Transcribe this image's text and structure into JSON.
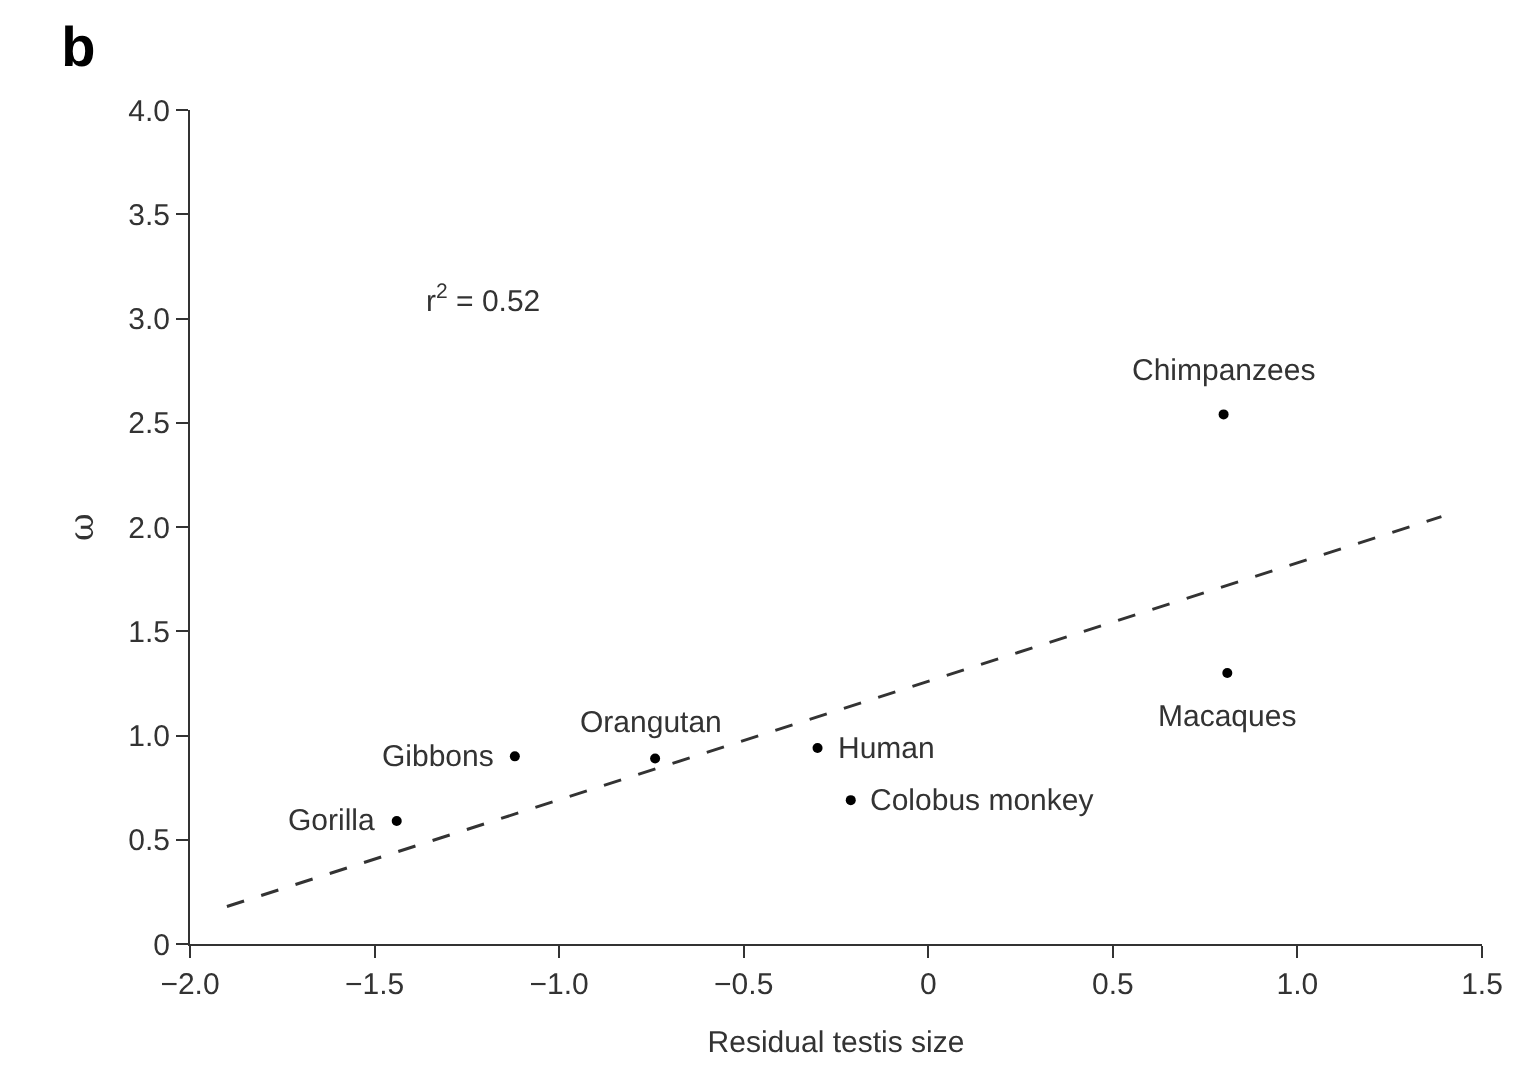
{
  "chart_data": {
    "type": "scatter",
    "title": "b",
    "xlabel": "Residual testis size",
    "ylabel": "ω",
    "series": [
      {
        "color": "#000000",
        "marker": "circle",
        "x": [
          0.8,
          0.81,
          -0.3,
          -0.21,
          -0.74,
          -1.12,
          -1.44
        ],
        "values": [
          2.54,
          1.3,
          0.94,
          0.69,
          0.89,
          0.9,
          0.59
        ]
      },
      {
        "type": "line",
        "color": "#333333",
        "line_style": "dashed",
        "x": [
          -1.9,
          1.39
        ],
        "values": [
          0.18,
          2.05
        ]
      }
    ],
    "annotations": [
      {
        "text": "Chimpanzees",
        "x": 0.8,
        "y": 2.54
      },
      {
        "text": "Macaques",
        "x": 0.81,
        "y": 1.3
      },
      {
        "text": "Human",
        "x": -0.3,
        "y": 0.94
      },
      {
        "text": "Colobus monkey",
        "x": -0.21,
        "y": 0.69
      },
      {
        "text": "Orangutan",
        "x": -0.74,
        "y": 0.89
      },
      {
        "text": "Gibbons",
        "x": -1.12,
        "y": 0.9
      },
      {
        "text": "Gorilla",
        "x": -1.44,
        "y": 0.59
      },
      "r$^{2}$ = 0.52"
    ],
    "xlim": [
      -2.0,
      1.5
    ],
    "xticks": [
      {
        "value": -2.0,
        "label": "−2.0"
      },
      {
        "value": -1.5,
        "label": "−1.5"
      },
      {
        "value": -1.0,
        "label": "−1.0"
      },
      {
        "value": -0.5,
        "label": "−0.5"
      },
      0,
      0.5,
      {
        "value": 1.0,
        "label": "1.0"
      },
      1.5
    ],
    "ylim": [
      0,
      4.0
    ],
    "yticks": [
      0,
      0.5,
      {
        "value": 1.0,
        "label": "1.0"
      },
      1.5,
      {
        "value": 2.0,
        "label": "2.0"
      },
      2.5,
      {
        "value": 3.0,
        "label": "3.0"
      },
      3.5,
      {
        "value": 4.0,
        "label": "4.0"
      }
    ]
  }
}
